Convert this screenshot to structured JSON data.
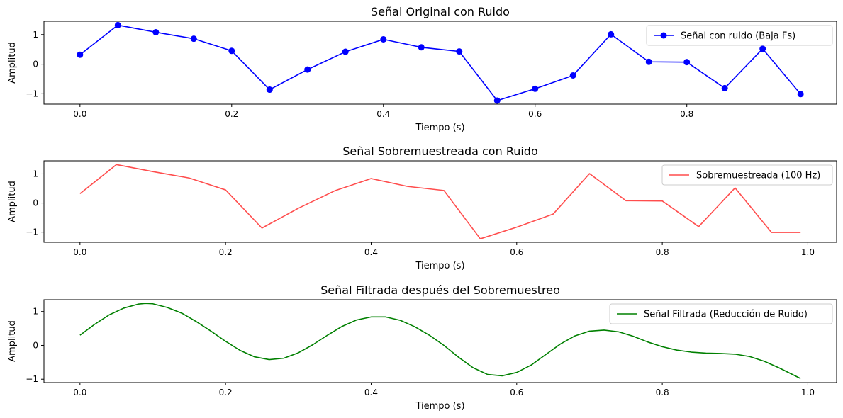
{
  "chart_data": [
    {
      "type": "line",
      "title": "Señal Original con Ruido",
      "xlabel": "Tiempo (s)",
      "ylabel": "Amplitud",
      "xlim": [
        -0.0475,
        0.9975
      ],
      "ylim": [
        -1.35,
        1.45
      ],
      "xticks": [
        0,
        0.2,
        0.4,
        0.6,
        0.8
      ],
      "xtick_labels": [
        "0.0",
        "0.2",
        "0.4",
        "0.6",
        "0.8"
      ],
      "yticks": [
        -1,
        0,
        1
      ],
      "ytick_labels": [
        "−1",
        "0",
        "1"
      ],
      "grid": false,
      "legend_position": "top-right",
      "series": [
        {
          "name": "Señal con ruido (Baja Fs)",
          "color": "#0000ff",
          "marker": "circle",
          "x": [
            0,
            0.05,
            0.1,
            0.15,
            0.2,
            0.25,
            0.3,
            0.35,
            0.4,
            0.45,
            0.5,
            0.55,
            0.6,
            0.65,
            0.7,
            0.75,
            0.8,
            0.85,
            0.9,
            0.95
          ],
          "y": [
            0.32,
            1.32,
            1.08,
            0.86,
            0.45,
            -0.86,
            -0.18,
            0.42,
            0.84,
            0.57,
            0.43,
            -1.23,
            -0.83,
            -0.38,
            1.01,
            0.08,
            0.07,
            -0.81,
            0.52,
            -1.01
          ]
        }
      ]
    },
    {
      "type": "line",
      "title": "Señal Sobremuestreada con Ruido",
      "xlabel": "Tiempo (s)",
      "ylabel": "Amplitud",
      "xlim": [
        -0.0495,
        1.0395
      ],
      "ylim": [
        -1.35,
        1.45
      ],
      "xticks": [
        0,
        0.2,
        0.4,
        0.6,
        0.8,
        1.0
      ],
      "xtick_labels": [
        "0.0",
        "0.2",
        "0.4",
        "0.6",
        "0.8",
        "1.0"
      ],
      "yticks": [
        -1,
        0,
        1
      ],
      "ytick_labels": [
        "−1",
        "0",
        "1"
      ],
      "grid": false,
      "legend_position": "top-right",
      "series": [
        {
          "name": "Sobremuestreada (100 Hz)",
          "color": "#ff4d4d",
          "x": [
            0,
            0.05,
            0.1,
            0.15,
            0.2,
            0.25,
            0.3,
            0.35,
            0.4,
            0.45,
            0.5,
            0.55,
            0.6,
            0.65,
            0.7,
            0.75,
            0.8,
            0.85,
            0.9,
            0.95,
            0.99
          ],
          "y": [
            0.32,
            1.32,
            1.08,
            0.86,
            0.45,
            -0.86,
            -0.18,
            0.42,
            0.84,
            0.57,
            0.43,
            -1.23,
            -0.83,
            -0.38,
            1.01,
            0.08,
            0.07,
            -0.81,
            0.52,
            -1.01,
            -1.01
          ]
        }
      ]
    },
    {
      "type": "line",
      "title": "Señal Filtrada después del Sobremuestreo",
      "xlabel": "Tiempo (s)",
      "ylabel": "Amplitud",
      "xlim": [
        -0.0495,
        1.0395
      ],
      "ylim": [
        -1.1,
        1.35
      ],
      "xticks": [
        0,
        0.2,
        0.4,
        0.6,
        0.8,
        1.0
      ],
      "xtick_labels": [
        "0.0",
        "0.2",
        "0.4",
        "0.6",
        "0.8",
        "1.0"
      ],
      "yticks": [
        -1,
        0,
        1
      ],
      "ytick_labels": [
        "−1",
        "0",
        "1"
      ],
      "grid": false,
      "legend_position": "top-right",
      "series": [
        {
          "name": "Señal Filtrada (Reducción de Ruido)",
          "color": "#008000",
          "x": [
            0,
            0.02,
            0.04,
            0.06,
            0.08,
            0.09,
            0.1,
            0.12,
            0.14,
            0.16,
            0.18,
            0.2,
            0.22,
            0.24,
            0.26,
            0.28,
            0.3,
            0.32,
            0.34,
            0.36,
            0.38,
            0.4,
            0.42,
            0.44,
            0.46,
            0.48,
            0.5,
            0.52,
            0.54,
            0.56,
            0.58,
            0.6,
            0.62,
            0.64,
            0.66,
            0.68,
            0.7,
            0.72,
            0.74,
            0.76,
            0.78,
            0.8,
            0.82,
            0.84,
            0.86,
            0.88,
            0.9,
            0.92,
            0.94,
            0.96,
            0.99
          ],
          "y": [
            0.3,
            0.62,
            0.9,
            1.1,
            1.22,
            1.24,
            1.23,
            1.12,
            0.95,
            0.7,
            0.42,
            0.12,
            -0.15,
            -0.34,
            -0.42,
            -0.38,
            -0.22,
            0.02,
            0.3,
            0.56,
            0.75,
            0.84,
            0.84,
            0.74,
            0.55,
            0.3,
            0.0,
            -0.35,
            -0.66,
            -0.86,
            -0.9,
            -0.8,
            -0.58,
            -0.27,
            0.04,
            0.28,
            0.42,
            0.45,
            0.4,
            0.27,
            0.1,
            -0.04,
            -0.14,
            -0.2,
            -0.23,
            -0.24,
            -0.26,
            -0.33,
            -0.47,
            -0.66,
            -0.98
          ]
        }
      ]
    }
  ]
}
